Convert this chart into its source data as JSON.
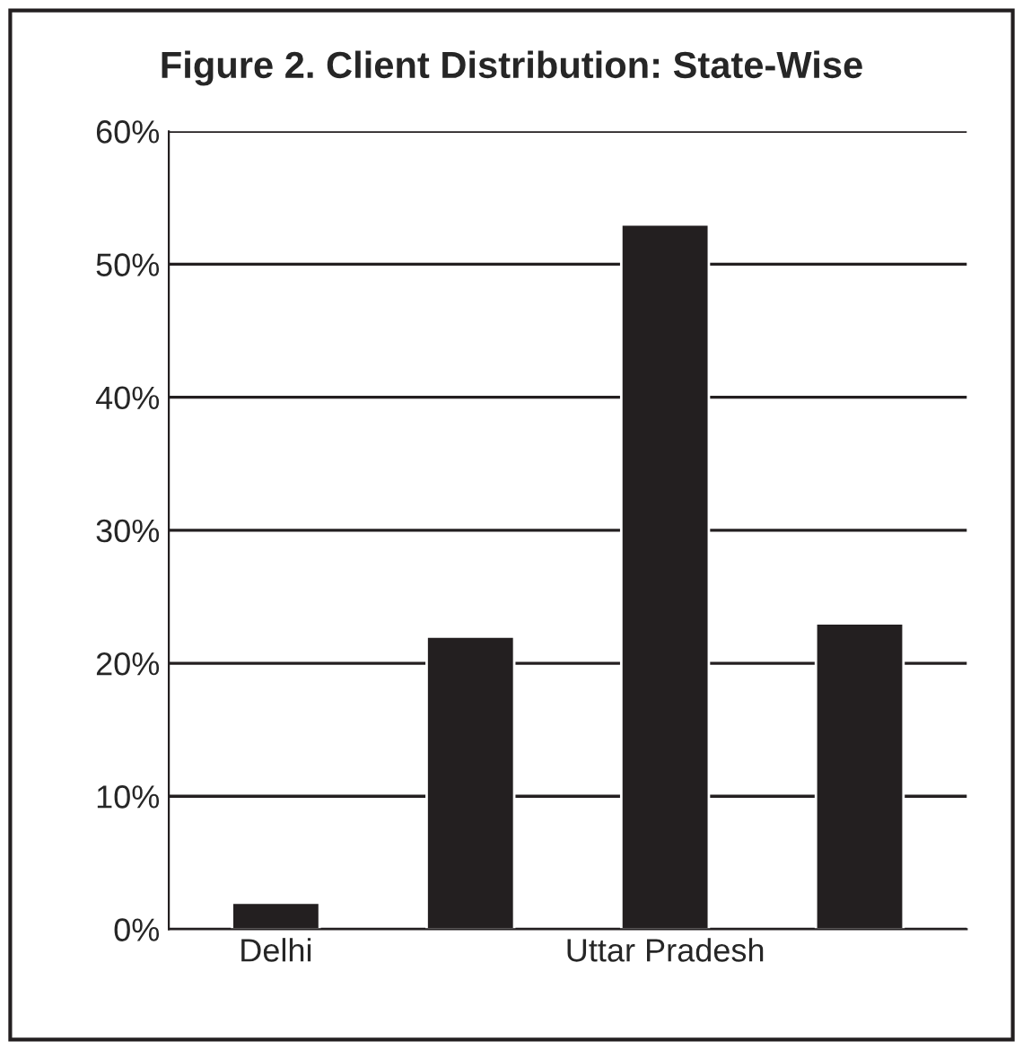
{
  "chart_data": {
    "type": "bar",
    "title": "Figure 2. Client Distribution: State-Wise",
    "categories": [
      "Delhi",
      null,
      "Uttar Pradesh",
      null
    ],
    "values": [
      2,
      22,
      53,
      23
    ],
    "color": "#231f20",
    "ylim": [
      0,
      60
    ],
    "yticks": [
      {
        "value": 0,
        "label": "0%"
      },
      {
        "value": 10,
        "label": "10%"
      },
      {
        "value": 20,
        "label": "20%"
      },
      {
        "value": 30,
        "label": "30%"
      },
      {
        "value": 40,
        "label": "40%"
      },
      {
        "value": 50,
        "label": "50%"
      },
      {
        "value": 60,
        "label": "60%"
      }
    ],
    "grid": "y",
    "legend": false
  }
}
